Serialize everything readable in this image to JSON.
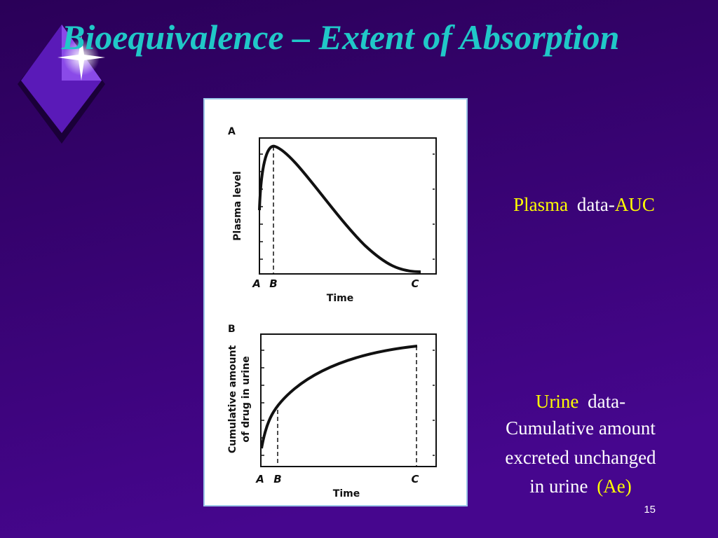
{
  "title": "Bioequivalence – Extent of Absorption",
  "figure": {
    "panels": [
      {
        "label": "A",
        "y_label": "Plasma level",
        "x_label": "Time",
        "x_markers": [
          "A",
          "B",
          "C"
        ]
      },
      {
        "label": "B",
        "y_label_lines": [
          "Cumulative amount",
          "of drug in urine"
        ],
        "x_label": "Time",
        "x_markers": [
          "A",
          "B",
          "C"
        ]
      }
    ]
  },
  "plasma_note": {
    "lead": "Plasma",
    "text": "data-",
    "tail": "AUC"
  },
  "urine_note": {
    "lead": "Urine",
    "text_lines": [
      "data-",
      "Cumulative amount",
      "excreted unchanged",
      "in urine"
    ],
    "tail": "(Ae)"
  },
  "page_number": "15"
}
